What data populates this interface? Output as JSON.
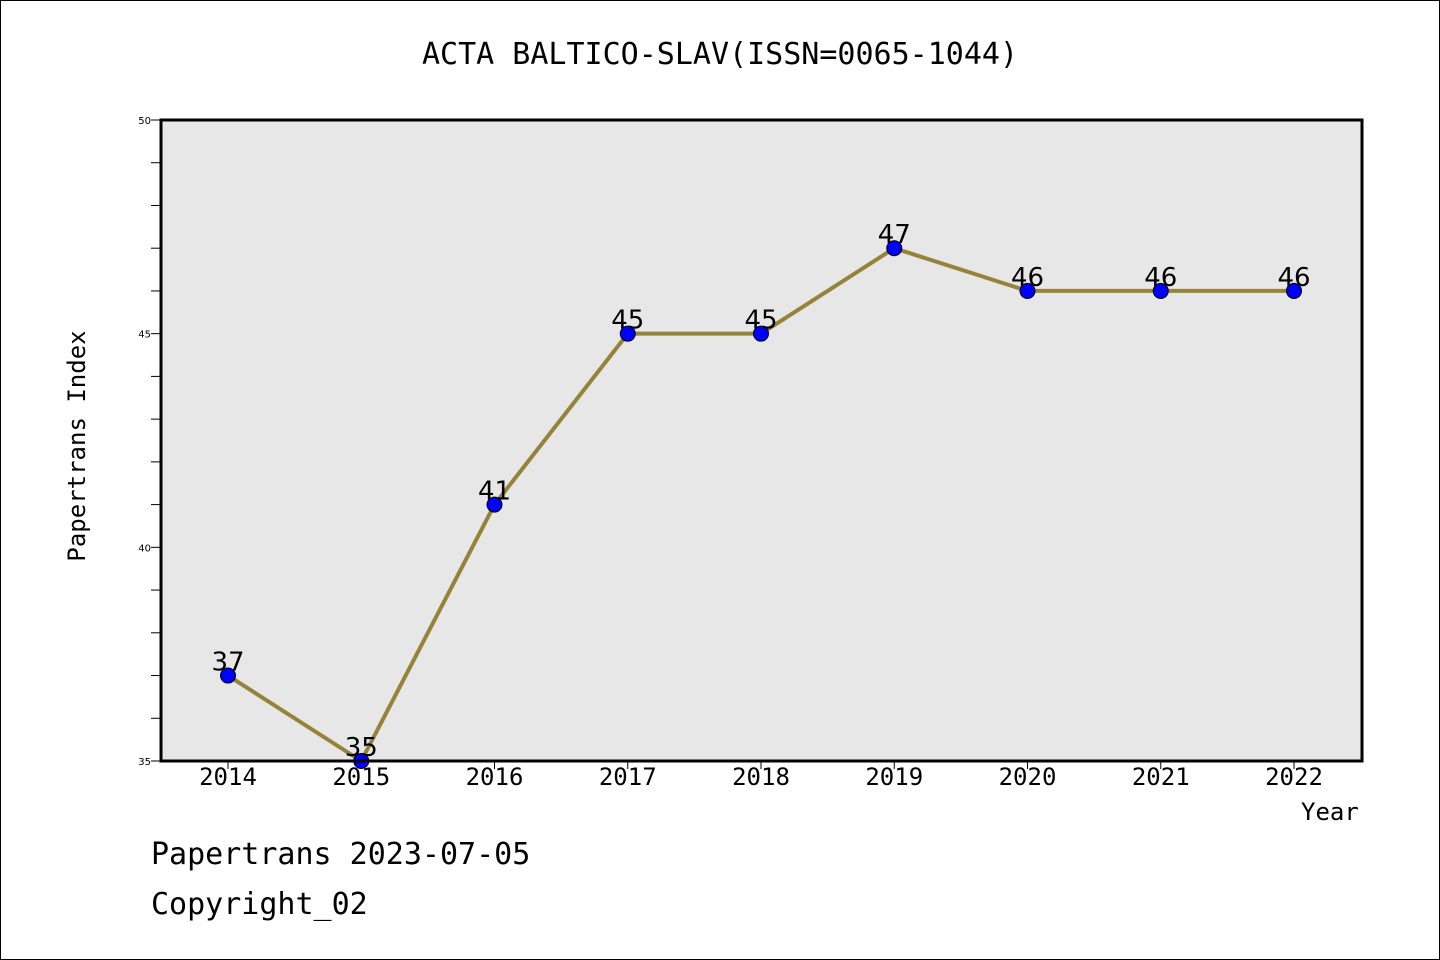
{
  "chart_data": {
    "type": "line",
    "title": "ACTA BALTICO-SLAV(ISSN=0065-1044)",
    "xlabel": "Year",
    "ylabel": "Papertrans Index",
    "x": [
      "2014",
      "2015",
      "2016",
      "2017",
      "2018",
      "2019",
      "2020",
      "2021",
      "2022"
    ],
    "series": [
      {
        "values": [
          37,
          35,
          41,
          45,
          45,
          47,
          46,
          46,
          46
        ]
      }
    ],
    "ylim": [
      35,
      50
    ],
    "yticks": [
      "35",
      "40",
      "45",
      "50"
    ],
    "grid": false,
    "data_labels": true,
    "colors": {
      "line": "#948339",
      "marker": "#0000ff",
      "plot_background": "#e7e7e7"
    }
  },
  "footer": {
    "line1": "Papertrans 2023-07-05",
    "line2": "Copyright_02"
  }
}
